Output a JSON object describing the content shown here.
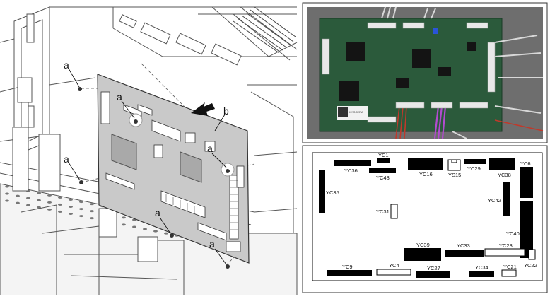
{
  "callouts": {
    "a1": "a",
    "a2": "a",
    "a3": "a",
    "a4": "a",
    "a5": "a",
    "a6": "a",
    "b": "b"
  },
  "connectors": {
    "YC1": "YC1",
    "YC36": "YC36",
    "YC43": "YC43",
    "YC16": "YC16",
    "YS15": "YS15",
    "YC29": "YC29",
    "YC38": "YC38",
    "YC6": "YC6",
    "YC35": "YC35",
    "YC42": "YC42",
    "YC31": "YC31",
    "YC40": "YC40",
    "YC39": "YC39",
    "YC33": "YC33",
    "YC23": "YC23",
    "YC22": "YC22",
    "YC9": "YC9",
    "YC4": "YC4",
    "YC27": "YC27",
    "YC34": "YC34",
    "YC21": "YC21"
  },
  "photo": {
    "board_label": "KYOCERA"
  },
  "colors": {
    "board_fill": "#c9c9c9",
    "chip_fill": "#a9a9a9",
    "photo_pcb": "#2b5a3b",
    "connector_black": "#000000"
  }
}
